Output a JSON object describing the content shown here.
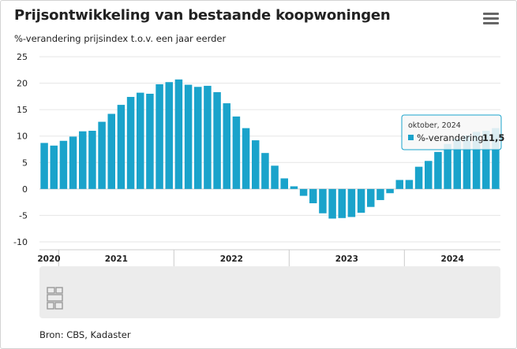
{
  "title": "Prijsontwikkeling van bestaande koopwoningen",
  "subtitle": "%-verandering prijsindex t.o.v. een jaar eerder",
  "source": "Bron: CBS, Kadaster",
  "menu_icon": "hamburger-menu-icon",
  "logo_icon": "cbs-logo-icon",
  "colors": {
    "bar": "#1aa3cb",
    "bar_faded": "#8fd3e6",
    "grid": "#e6e6e6",
    "navigator_bg": "#ececec"
  },
  "chart_data": {
    "type": "bar",
    "title": "Prijsontwikkeling van bestaande koopwoningen",
    "ylabel": "%-verandering prijsindex t.o.v. een jaar eerder",
    "ylim": [
      -10,
      25
    ],
    "yticks": [
      -10,
      -5,
      0,
      5,
      10,
      15,
      20,
      25
    ],
    "ytick_labels": [
      "-10",
      "-5",
      "0",
      "5",
      "10",
      "15",
      "20",
      "25"
    ],
    "grid": true,
    "year_labels": [
      "2020",
      "2021",
      "2022",
      "2023",
      "2024"
    ],
    "categories": [
      "nov 2020",
      "dec 2020",
      "jan 2021",
      "feb 2021",
      "mrt 2021",
      "apr 2021",
      "mei 2021",
      "jun 2021",
      "jul 2021",
      "aug 2021",
      "sep 2021",
      "okt 2021",
      "nov 2021",
      "dec 2021",
      "jan 2022",
      "feb 2022",
      "mrt 2022",
      "apr 2022",
      "mei 2022",
      "jun 2022",
      "jul 2022",
      "aug 2022",
      "sep 2022",
      "okt 2022",
      "nov 2022",
      "dec 2022",
      "jan 2023",
      "feb 2023",
      "mrt 2023",
      "apr 2023",
      "mei 2023",
      "jun 2023",
      "jul 2023",
      "aug 2023",
      "sep 2023",
      "okt 2023",
      "nov 2023",
      "dec 2023",
      "jan 2024",
      "feb 2024",
      "mrt 2024",
      "apr 2024",
      "mei 2024",
      "jun 2024",
      "jul 2024",
      "aug 2024",
      "sep 2024",
      "okt 2024"
    ],
    "series": [
      {
        "name": "%-verandering",
        "values": [
          8.7,
          8.2,
          9.1,
          9.9,
          10.9,
          11.0,
          12.7,
          14.2,
          15.9,
          17.4,
          18.2,
          18.0,
          19.8,
          20.2,
          20.7,
          19.7,
          19.3,
          19.5,
          18.3,
          16.2,
          13.7,
          11.5,
          9.2,
          6.8,
          4.4,
          2.0,
          0.5,
          -1.3,
          -2.7,
          -4.6,
          -5.6,
          -5.5,
          -5.3,
          -4.5,
          -3.4,
          -2.1,
          -0.8,
          1.7,
          1.7,
          4.2,
          5.3,
          7.0,
          8.5,
          9.5,
          10.1,
          10.8,
          11.0,
          11.5
        ]
      }
    ],
    "highlighted_index": 47,
    "tooltip": {
      "header": "oktober, 2024",
      "series_label": "%-verandering:",
      "value_label": "11,5"
    }
  }
}
